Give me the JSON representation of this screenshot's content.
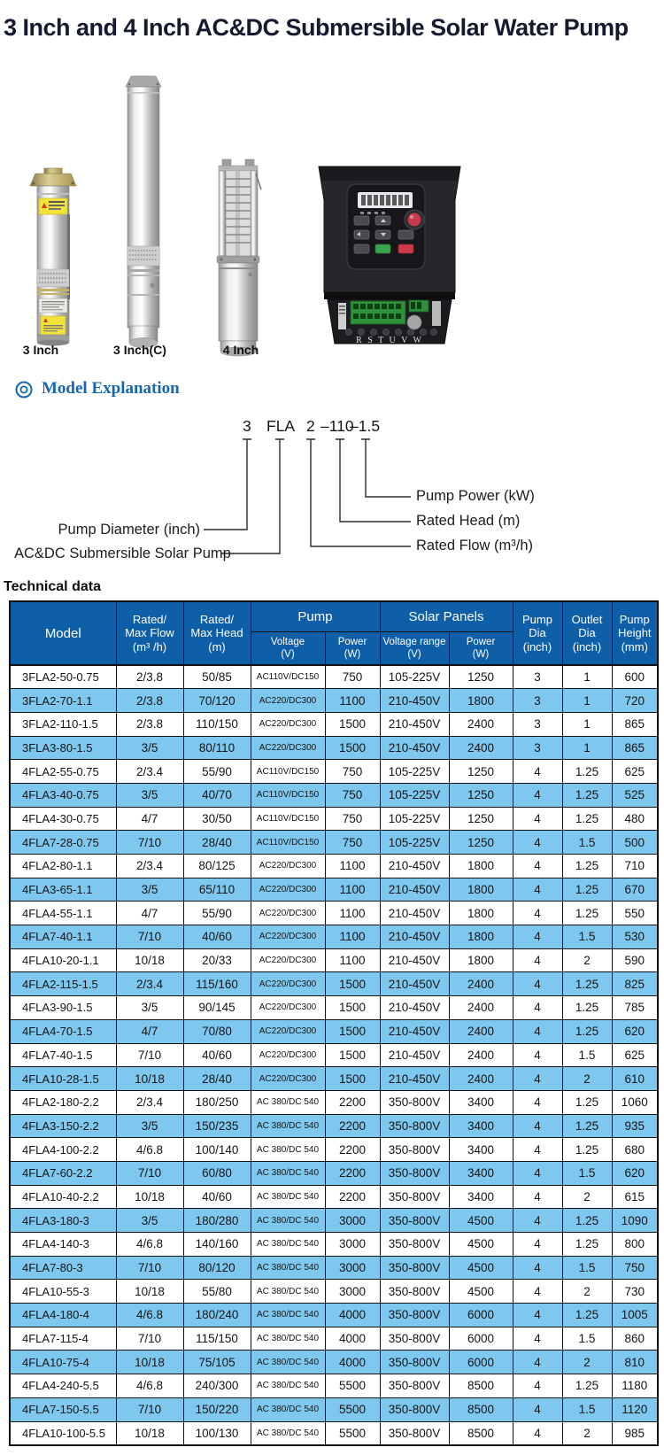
{
  "page": {
    "title": "3 Inch and 4 Inch AC&DC Submersible Solar Water Pump"
  },
  "colors": {
    "title_text": "#161a2e",
    "heading_blue": "#1566b0",
    "table_header_blue": "#0e5ea8",
    "row_stripe_blue": "#7ec8f0"
  },
  "products": {
    "labels": [
      "3 Inch",
      "3 Inch(C)",
      "4 Inch"
    ],
    "controller": {
      "terminal_text": "R S T U V W"
    }
  },
  "model_explanation": {
    "heading": "Model Explanation",
    "code_parts": [
      "3",
      "FLA",
      "2",
      "–110",
      "–1.5"
    ],
    "left_labels": [
      "Pump Diameter (inch)",
      "AC&DC Submersible Solar Pump"
    ],
    "right_labels": [
      "Pump Power (kW)",
      "Rated Head (m)",
      "Rated Flow (m³/h)"
    ]
  },
  "technical": {
    "heading": "Technical data",
    "table": {
      "header": {
        "model": "Model",
        "flow": [
          "Rated/",
          "Max Flow",
          "(m³ /h)"
        ],
        "head": [
          "Rated/",
          "Max Head",
          "(m)"
        ],
        "pump_group": "Pump",
        "solar_group": "Solar Panels",
        "pump_voltage": [
          "Voltage",
          "(V)"
        ],
        "pump_power": [
          "Power",
          "(W)"
        ],
        "solar_voltage": [
          "Voltage range",
          "(V)"
        ],
        "solar_power": [
          "Power",
          "(W)"
        ],
        "pump_dia": [
          "Pump",
          "Dia",
          "(inch)"
        ],
        "outlet_dia": [
          "Outlet",
          "Dia",
          "(inch)"
        ],
        "pump_height": [
          "Pump",
          "Height",
          "(mm)"
        ]
      },
      "rows": [
        [
          "3FLA2-50-0.75",
          "2/3.8",
          "50/85",
          "AC110V/DC150",
          "750",
          "105-225V",
          "1250",
          "3",
          "1",
          "600"
        ],
        [
          "3FLA2-70-1.1",
          "2/3.8",
          "70/120",
          "AC220/DC300",
          "1100",
          "210-450V",
          "1800",
          "3",
          "1",
          "720"
        ],
        [
          "3FLA2-110-1.5",
          "2/3.8",
          "110/150",
          "AC220/DC300",
          "1500",
          "210-450V",
          "2400",
          "3",
          "1",
          "865"
        ],
        [
          "3FLA3-80-1.5",
          "3/5",
          "80/110",
          "AC220/DC300",
          "1500",
          "210-450V",
          "2400",
          "3",
          "1",
          "865"
        ],
        [
          "4FLA2-55-0.75",
          "2/3.4",
          "55/90",
          "AC110V/DC150",
          "750",
          "105-225V",
          "1250",
          "4",
          "1.25",
          "625"
        ],
        [
          "4FLA3-40-0.75",
          "3/5",
          "40/70",
          "AC110V/DC150",
          "750",
          "105-225V",
          "1250",
          "4",
          "1.25",
          "525"
        ],
        [
          "4FLA4-30-0.75",
          "4/7",
          "30/50",
          "AC110V/DC150",
          "750",
          "105-225V",
          "1250",
          "4",
          "1.25",
          "480"
        ],
        [
          "4FLA7-28-0.75",
          "7/10",
          "28/40",
          "AC110V/DC150",
          "750",
          "105-225V",
          "1250",
          "4",
          "1.5",
          "500"
        ],
        [
          "4FLA2-80-1.1",
          "2/3.4",
          "80/125",
          "AC220/DC300",
          "1100",
          "210-450V",
          "1800",
          "4",
          "1.25",
          "710"
        ],
        [
          "4FLA3-65-1.1",
          "3/5",
          "65/110",
          "AC220/DC300",
          "1100",
          "210-450V",
          "1800",
          "4",
          "1.25",
          "670"
        ],
        [
          "4FLA4-55-1.1",
          "4/7",
          "55/90",
          "AC220/DC300",
          "1100",
          "210-450V",
          "1800",
          "4",
          "1.25",
          "550"
        ],
        [
          "4FLA7-40-1.1",
          "7/10",
          "40/60",
          "AC220/DC300",
          "1100",
          "210-450V",
          "1800",
          "4",
          "1.5",
          "530"
        ],
        [
          "4FLA10-20-1.1",
          "10/18",
          "20/33",
          "AC220/DC300",
          "1100",
          "210-450V",
          "1800",
          "4",
          "2",
          "590"
        ],
        [
          "4FLA2-115-1.5",
          "2/3.4",
          "115/160",
          "AC220/DC300",
          "1500",
          "210-450V",
          "2400",
          "4",
          "1.25",
          "825"
        ],
        [
          "4FLA3-90-1.5",
          "3/5",
          "90/145",
          "AC220/DC300",
          "1500",
          "210-450V",
          "2400",
          "4",
          "1.25",
          "785"
        ],
        [
          "4FLA4-70-1.5",
          "4/7",
          "70/80",
          "AC220/DC300",
          "1500",
          "210-450V",
          "2400",
          "4",
          "1.25",
          "620"
        ],
        [
          "4FLA7-40-1.5",
          "7/10",
          "40/60",
          "AC220/DC300",
          "1500",
          "210-450V",
          "2400",
          "4",
          "1.5",
          "625"
        ],
        [
          "4FLA10-28-1.5",
          "10/18",
          "28/40",
          "AC220/DC300",
          "1500",
          "210-450V",
          "2400",
          "4",
          "2",
          "610"
        ],
        [
          "4FLA2-180-2.2",
          "2/3.4",
          "180/250",
          "AC 380/DC 540",
          "2200",
          "350-800V",
          "3400",
          "4",
          "1.25",
          "1060"
        ],
        [
          "4FLA3-150-2.2",
          "3/5",
          "150/235",
          "AC 380/DC 540",
          "2200",
          "350-800V",
          "3400",
          "4",
          "1.25",
          "935"
        ],
        [
          "4FLA4-100-2.2",
          "4/6.8",
          "100/140",
          "AC 380/DC 540",
          "2200",
          "350-800V",
          "3400",
          "4",
          "1.25",
          "680"
        ],
        [
          "4FLA7-60-2.2",
          "7/10",
          "60/80",
          "AC 380/DC 540",
          "2200",
          "350-800V",
          "3400",
          "4",
          "1.5",
          "620"
        ],
        [
          "4FLA10-40-2.2",
          "10/18",
          "40/60",
          "AC 380/DC 540",
          "2200",
          "350-800V",
          "3400",
          "4",
          "2",
          "615"
        ],
        [
          "4FLA3-180-3",
          "3/5",
          "180/280",
          "AC 380/DC 540",
          "3000",
          "350-800V",
          "4500",
          "4",
          "1.25",
          "1090"
        ],
        [
          "4FLA4-140-3",
          "4/6.8",
          "140/160",
          "AC 380/DC 540",
          "3000",
          "350-800V",
          "4500",
          "4",
          "1.25",
          "800"
        ],
        [
          "4FLA7-80-3",
          "7/10",
          "80/120",
          "AC 380/DC 540",
          "3000",
          "350-800V",
          "4500",
          "4",
          "1.5",
          "750"
        ],
        [
          "4FLA10-55-3",
          "10/18",
          "55/80",
          "AC 380/DC 540",
          "3000",
          "350-800V",
          "4500",
          "4",
          "2",
          "730"
        ],
        [
          "4FLA4-180-4",
          "4/6.8",
          "180/240",
          "AC 380/DC 540",
          "4000",
          "350-800V",
          "6000",
          "4",
          "1.25",
          "1005"
        ],
        [
          "4FLA7-115-4",
          "7/10",
          "115/150",
          "AC 380/DC 540",
          "4000",
          "350-800V",
          "6000",
          "4",
          "1.5",
          "860"
        ],
        [
          "4FLA10-75-4",
          "10/18",
          "75/105",
          "AC 380/DC 540",
          "4000",
          "350-800V",
          "6000",
          "4",
          "2",
          "810"
        ],
        [
          "4FLA4-240-5.5",
          "4/6.8",
          "240/300",
          "AC 380/DC 540",
          "5500",
          "350-800V",
          "8500",
          "4",
          "1.25",
          "1180"
        ],
        [
          "4FLA7-150-5.5",
          "7/10",
          "150/220",
          "AC 380/DC 540",
          "5500",
          "350-800V",
          "8500",
          "4",
          "1.5",
          "1120"
        ],
        [
          "4FLA10-100-5.5",
          "10/18",
          "100/130",
          "AC 380/DC 540",
          "5500",
          "350-800V",
          "8500",
          "4",
          "2",
          "985"
        ]
      ]
    }
  }
}
